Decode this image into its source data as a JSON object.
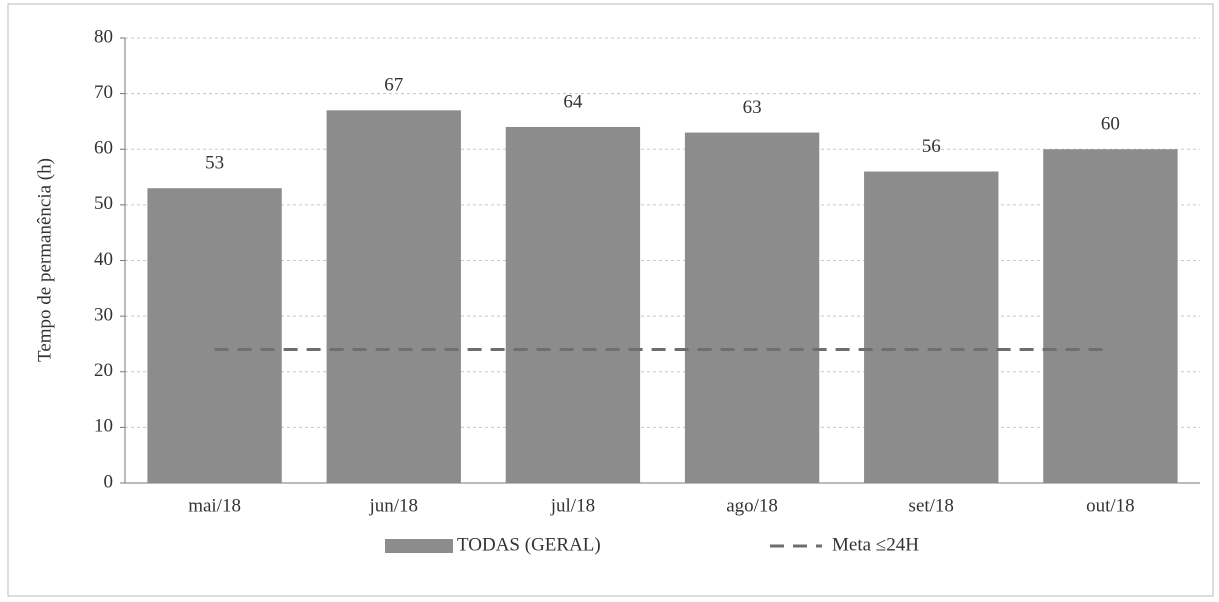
{
  "chart_data": {
    "type": "bar",
    "y_label": "Tempo de permanência (h)",
    "categories": [
      "mai/18",
      "jun/18",
      "jul/18",
      "ago/18",
      "set/18",
      "out/18"
    ],
    "series": [
      {
        "name": "TODAS (GERAL)",
        "type": "bar",
        "color": "#8c8c8c",
        "values": [
          53,
          67,
          64,
          63,
          56,
          60
        ]
      },
      {
        "name": "Meta ≤24H",
        "type": "line",
        "style": "dashed",
        "color": "#6e6e6e",
        "values": [
          24,
          24,
          24,
          24,
          24,
          24
        ]
      }
    ],
    "ylim": [
      0,
      80
    ],
    "yticks": [
      0,
      10,
      20,
      30,
      40,
      50,
      60,
      70,
      80
    ],
    "grid": true,
    "legend": "bottom"
  }
}
